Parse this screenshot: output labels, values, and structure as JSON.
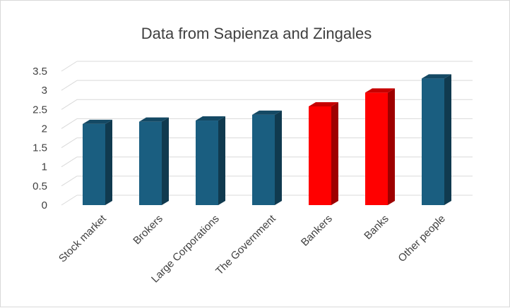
{
  "chart_data": {
    "type": "bar",
    "title": "Data from Sapienza and Zingales",
    "categories": [
      "Stock market",
      "Brokers",
      "Large Corporations",
      "The Government",
      "Bankers",
      "Banks",
      "Other people"
    ],
    "values": [
      2.12,
      2.18,
      2.21,
      2.36,
      2.58,
      2.94,
      3.31
    ],
    "ylim": [
      0,
      3.5
    ],
    "yticks": [
      "0",
      "0.5",
      "1",
      "1.5",
      "2",
      "2.5",
      "3",
      "3.5"
    ],
    "grid": true,
    "legend": "none",
    "bar_3d": true,
    "colors": {
      "default": "#1a5e80",
      "highlight": "#ff0000",
      "highlight_categories": [
        "Bankers",
        "Banks"
      ]
    }
  }
}
